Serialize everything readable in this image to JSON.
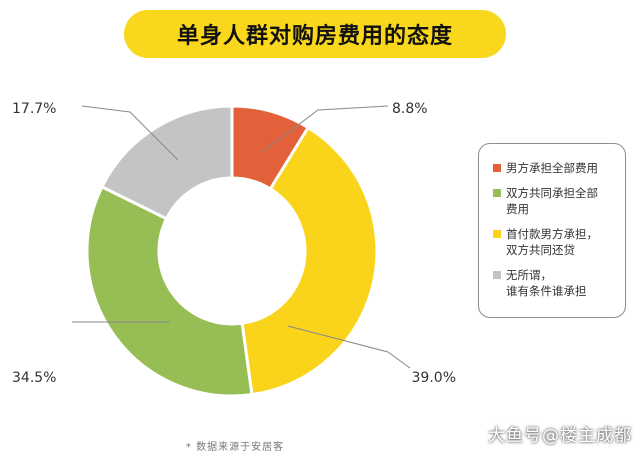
{
  "title": "单身人群对购房费用的态度",
  "chart_data": {
    "type": "pie",
    "donut": true,
    "slices": [
      {
        "label": "男方承担全部费用",
        "value": 8.8,
        "value_label": "8.8%",
        "color": "#e2603a"
      },
      {
        "label": "首付款男方承担，\n双方共同还贷",
        "value": 39.0,
        "value_label": "39.0%",
        "color": "#fad41b"
      },
      {
        "label": "双方共同承担全部\n费用",
        "value": 34.5,
        "value_label": "34.5%",
        "color": "#97bd55"
      },
      {
        "label": "无所谓，\n谁有条件谁承担",
        "value": 17.7,
        "value_label": "17.7%",
        "color": "#c4c4c4"
      }
    ],
    "legend_position": "right",
    "legend_order": [
      0,
      2,
      1,
      3
    ]
  },
  "source": "* 数据来源于安居客",
  "watermark": "大鱼号@楼主成都"
}
